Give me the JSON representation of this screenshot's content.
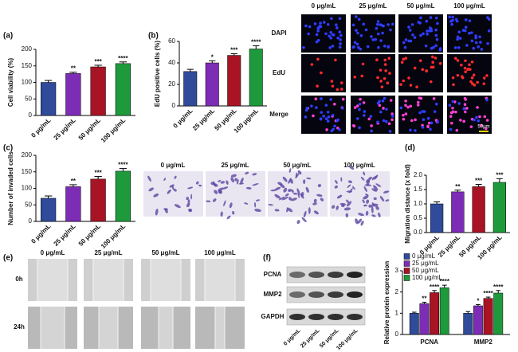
{
  "chart_data": [
    {
      "type": "bar",
      "panel": "(a)",
      "ylabel": "Cell viability (%)",
      "categories": [
        "0 μg/mL",
        "25 μg/mL",
        "50 μg/mL",
        "100 μg/mL"
      ],
      "values": [
        100,
        127,
        147,
        157
      ],
      "errors": [
        6,
        4,
        5,
        5
      ],
      "colors": [
        "#2f4b9a",
        "#7d2db5",
        "#a81424",
        "#1e9a3c"
      ],
      "annotations": [
        null,
        "**",
        "***",
        "****"
      ],
      "ylim": [
        0,
        200
      ],
      "yticks": [
        0,
        50,
        100,
        150,
        200
      ]
    },
    {
      "type": "bar",
      "panel": "(b)",
      "ylabel": "EdU positive cells (%)",
      "categories": [
        "0 μg/mL",
        "25 μg/mL",
        "50 μg/mL",
        "100 μg/mL"
      ],
      "values": [
        32,
        40,
        47,
        53
      ],
      "errors": [
        2,
        2,
        1.5,
        3
      ],
      "colors": [
        "#2f4b9a",
        "#7d2db5",
        "#a81424",
        "#1e9a3c"
      ],
      "annotations": [
        null,
        "*",
        "***",
        "****"
      ],
      "ylim": [
        0,
        60
      ],
      "yticks": [
        0,
        20,
        40,
        60
      ]
    },
    {
      "type": "bar",
      "panel": "(c)",
      "ylabel": "Number of invaded cells",
      "categories": [
        "0 μg/mL",
        "25 μg/mL",
        "50 μg/mL",
        "100 μg/mL"
      ],
      "values": [
        70,
        105,
        128,
        152
      ],
      "errors": [
        7,
        6,
        8,
        8
      ],
      "colors": [
        "#2f4b9a",
        "#7d2db5",
        "#a81424",
        "#1e9a3c"
      ],
      "annotations": [
        null,
        "**",
        "***",
        "****"
      ],
      "ylim": [
        0,
        200
      ],
      "yticks": [
        0,
        50,
        100,
        150,
        200
      ]
    },
    {
      "type": "bar",
      "panel": "(d)",
      "ylabel": "Migration distance (x fold)",
      "categories": [
        "0 μg/mL",
        "25 μg/mL",
        "50 μg/mL",
        "100 μg/mL"
      ],
      "values": [
        1.0,
        1.42,
        1.6,
        1.75
      ],
      "errors": [
        0.07,
        0.06,
        0.08,
        0.13
      ],
      "colors": [
        "#2f4b9a",
        "#7d2db5",
        "#a81424",
        "#1e9a3c"
      ],
      "annotations": [
        null,
        "**",
        "***",
        "***"
      ],
      "ylim": [
        0,
        2.0
      ],
      "yticks": [
        {
          "value": 0,
          "label": "0.0"
        },
        0.5,
        {
          "value": 1,
          "label": "1.0"
        },
        1.5,
        {
          "value": 2,
          "label": "2.0"
        }
      ]
    },
    {
      "type": "grouped",
      "panel": "(f)",
      "ylabel": "Relative protein expression",
      "categories": [
        "PCNA",
        "MMP2"
      ],
      "series": [
        {
          "name": "0 μg/mL",
          "color": "#2f4b9a",
          "values": [
            1.0,
            1.0
          ],
          "errors": [
            0.05,
            0.08
          ],
          "annotations": [
            null,
            null
          ]
        },
        {
          "name": "25 μg/mL",
          "color": "#7d2db5",
          "values": [
            1.45,
            1.35
          ],
          "errors": [
            0.07,
            0.06
          ],
          "annotations": [
            "**",
            "*"
          ]
        },
        {
          "name": "50 μg/mL",
          "color": "#a81424",
          "values": [
            1.97,
            1.7
          ],
          "errors": [
            0.1,
            0.06
          ],
          "annotations": [
            "****",
            "****"
          ]
        },
        {
          "name": "100 μg/mL",
          "color": "#1e9a3c",
          "values": [
            2.2,
            1.95
          ],
          "errors": [
            0.12,
            0.12
          ],
          "annotations": [
            "****",
            "****"
          ]
        }
      ],
      "ylim": [
        0,
        3
      ],
      "yticks": [
        0,
        1,
        2,
        3
      ]
    }
  ],
  "edu_images": {
    "columns": [
      "0 μg/mL",
      "25 μg/mL",
      "50 μg/mL",
      "100 μg/mL"
    ],
    "rows": [
      "DAPI",
      "EdU",
      "Merge"
    ],
    "scale": "50μm"
  },
  "invasion_images": {
    "columns": [
      "0 μg/mL",
      "25 μg/mL",
      "50 μg/mL",
      "100 μg/mL"
    ]
  },
  "wound_images": {
    "panel": "(e)",
    "columns": [
      "0 μg/mL",
      "25 μg/mL",
      "50 μg/mL",
      "100 μg/mL"
    ],
    "rows": [
      "0h",
      "24h"
    ]
  },
  "blot": {
    "rows": [
      "PCNA",
      "MMP2",
      "GAPDH"
    ],
    "lanes": [
      "0 μg/mL",
      "25 μg/mL",
      "50 μg/mL",
      "100 μg/mL"
    ]
  }
}
